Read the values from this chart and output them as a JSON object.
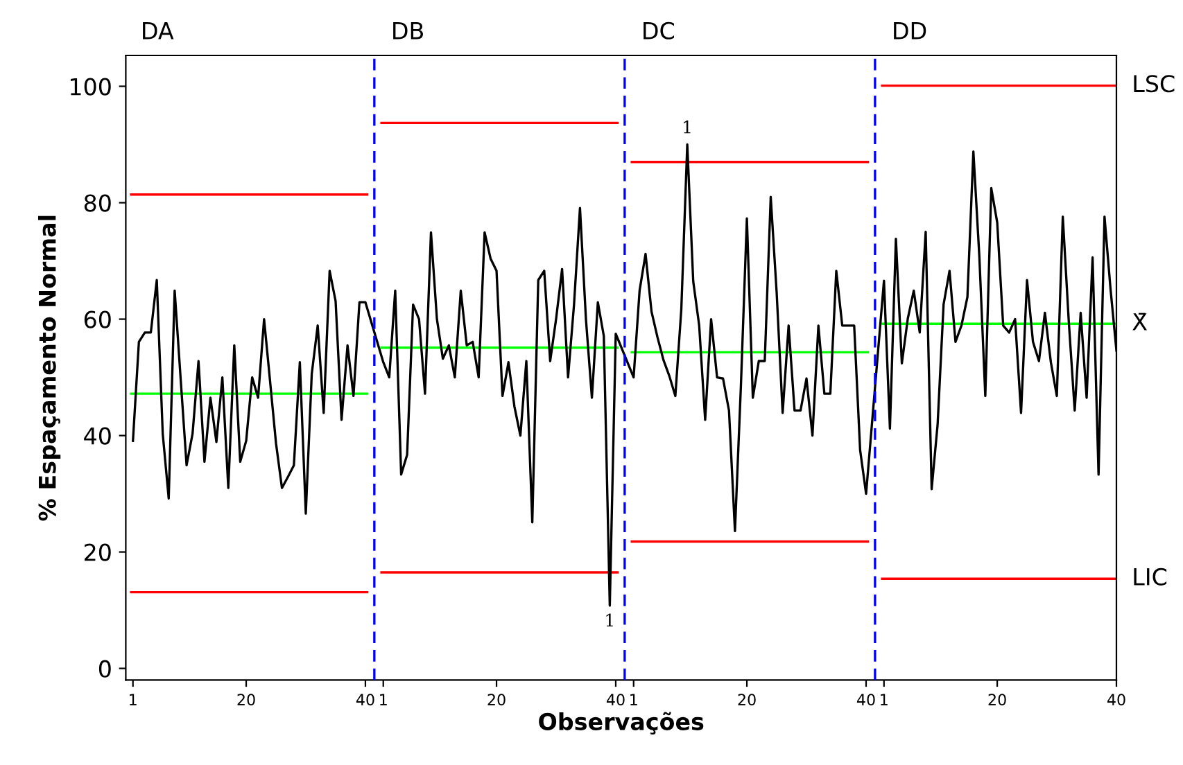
{
  "chart_data": {
    "type": "line",
    "xlabel": "Observações",
    "ylabel": "% Espaçamento Normal",
    "categories": [
      "1",
      null,
      null,
      null,
      null,
      null,
      null,
      null,
      null,
      null,
      null,
      null,
      null,
      null,
      null,
      null,
      null,
      null,
      null,
      "20",
      null,
      null,
      null,
      null,
      null,
      null,
      null,
      null,
      null,
      null,
      null,
      null,
      null,
      null,
      null,
      null,
      null,
      null,
      null,
      "40",
      null,
      null,
      "1",
      null,
      null,
      null,
      null,
      null,
      null,
      null,
      null,
      null,
      null,
      null,
      null,
      null,
      null,
      null,
      null,
      null,
      null,
      "20",
      null,
      null,
      null,
      null,
      null,
      null,
      null,
      null,
      null,
      null,
      null,
      null,
      null,
      null,
      null,
      null,
      null,
      null,
      null,
      "40",
      null,
      null,
      "1",
      null,
      null,
      null,
      null,
      null,
      null,
      null,
      null,
      null,
      null,
      null,
      null,
      null,
      null,
      null,
      null,
      null,
      null,
      "20",
      null,
      null,
      null,
      null,
      null,
      null,
      null,
      null,
      null,
      null,
      null,
      null,
      null,
      null,
      null,
      null,
      null,
      null,
      null,
      "40",
      null,
      null,
      "1",
      null,
      null,
      null,
      null,
      null,
      null,
      null,
      null,
      null,
      null,
      null,
      null,
      null,
      null,
      null,
      null,
      null,
      null,
      "20",
      null,
      null,
      null,
      null,
      null,
      null,
      null,
      null,
      null,
      null,
      null,
      null,
      null,
      null,
      null,
      null,
      null,
      null,
      null,
      "40"
    ],
    "series": [
      {
        "color": "#000000",
        "values": [
          39.1,
          56.1,
          57.7,
          57.7,
          66.7,
          40.3,
          29.2,
          64.9,
          49.8,
          34.9,
          40.3,
          52.8,
          35.5,
          46.5,
          38.9,
          50.0,
          31.0,
          55.5,
          35.5,
          39.1,
          50.0,
          46.5,
          60.0,
          49.4,
          38.7,
          31.0,
          32.9,
          34.9,
          52.6,
          26.6,
          50.6,
          58.9,
          43.9,
          68.3,
          63.1,
          42.7,
          55.5,
          46.8,
          62.9,
          62.9,
          null,
          null,
          52.6,
          50.0,
          64.9,
          33.3,
          36.7,
          62.5,
          60.0,
          47.2,
          74.9,
          60.0,
          53.2,
          55.5,
          50.0,
          64.9,
          55.5,
          56.1,
          50.0,
          74.9,
          70.4,
          68.3,
          46.8,
          52.6,
          45.0,
          40.0,
          52.8,
          25.1,
          66.7,
          68.3,
          52.8,
          60.1,
          68.6,
          50.0,
          62.5,
          79.1,
          60.0,
          46.5,
          62.9,
          57.1,
          10.8,
          57.5,
          null,
          null,
          50.0,
          64.9,
          71.2,
          61.3,
          56.9,
          53.0,
          50.2,
          46.8,
          61.7,
          90.0,
          66.5,
          58.9,
          42.7,
          60.0,
          50.0,
          49.8,
          44.3,
          23.6,
          48.6,
          77.3,
          46.5,
          52.8,
          52.8,
          81.0,
          64.5,
          43.9,
          58.9,
          44.3,
          44.3,
          49.8,
          40.0,
          58.9,
          47.2,
          47.2,
          68.3,
          58.9,
          58.9,
          58.9,
          37.5,
          30.0,
          null,
          null,
          66.6,
          41.2,
          73.8,
          52.4,
          60.1,
          64.9,
          57.7,
          75.0,
          30.8,
          41.9,
          62.5,
          68.3,
          56.1,
          58.9,
          63.8,
          88.8,
          70.8,
          46.8,
          82.5,
          76.6,
          58.9,
          57.7,
          60.0,
          43.9,
          66.7,
          56.1,
          52.8,
          61.1,
          52.6,
          46.8,
          77.6,
          59.7,
          44.3,
          61.1,
          46.5,
          70.6,
          33.3,
          77.6,
          65.3,
          54.6
        ]
      },
      {
        "type": "step",
        "name": "LSC",
        "color": "#ff0000",
        "values": [
          81.4,
          81.4,
          81.4,
          81.4,
          81.4,
          81.4,
          81.4,
          81.4,
          81.4,
          81.4,
          81.4,
          81.4,
          81.4,
          81.4,
          81.4,
          81.4,
          81.4,
          81.4,
          81.4,
          81.4,
          81.4,
          81.4,
          81.4,
          81.4,
          81.4,
          81.4,
          81.4,
          81.4,
          81.4,
          81.4,
          81.4,
          81.4,
          81.4,
          81.4,
          81.4,
          81.4,
          81.4,
          81.4,
          81.4,
          81.4,
          null,
          null,
          93.7,
          93.7,
          93.7,
          93.7,
          93.7,
          93.7,
          93.7,
          93.7,
          93.7,
          93.7,
          93.7,
          93.7,
          93.7,
          93.7,
          93.7,
          93.7,
          93.7,
          93.7,
          93.7,
          93.7,
          93.7,
          93.7,
          93.7,
          93.7,
          93.7,
          93.7,
          93.7,
          93.7,
          93.7,
          93.7,
          93.7,
          93.7,
          93.7,
          93.7,
          93.7,
          93.7,
          93.7,
          93.7,
          93.7,
          93.7,
          null,
          null,
          87.0,
          87.0,
          87.0,
          87.0,
          87.0,
          87.0,
          87.0,
          87.0,
          87.0,
          87.0,
          87.0,
          87.0,
          87.0,
          87.0,
          87.0,
          87.0,
          87.0,
          87.0,
          87.0,
          87.0,
          87.0,
          87.0,
          87.0,
          87.0,
          87.0,
          87.0,
          87.0,
          87.0,
          87.0,
          87.0,
          87.0,
          87.0,
          87.0,
          87.0,
          87.0,
          87.0,
          87.0,
          87.0,
          87.0,
          87.0,
          null,
          null,
          100.1,
          100.1,
          100.1,
          100.1,
          100.1,
          100.1,
          100.1,
          100.1,
          100.1,
          100.1,
          100.1,
          100.1,
          100.1,
          100.1,
          100.1,
          100.1,
          100.1,
          100.1,
          100.1,
          100.1,
          100.1,
          100.1,
          100.1,
          100.1,
          100.1,
          100.1,
          100.1,
          100.1,
          100.1,
          100.1,
          100.1,
          100.1,
          100.1,
          100.1,
          100.1,
          100.1,
          100.1,
          100.1,
          100.1,
          100.1
        ]
      },
      {
        "type": "step",
        "name": "X̄",
        "color": "#00ff00",
        "values": [
          47.2,
          47.2,
          47.2,
          47.2,
          47.2,
          47.2,
          47.2,
          47.2,
          47.2,
          47.2,
          47.2,
          47.2,
          47.2,
          47.2,
          47.2,
          47.2,
          47.2,
          47.2,
          47.2,
          47.2,
          47.2,
          47.2,
          47.2,
          47.2,
          47.2,
          47.2,
          47.2,
          47.2,
          47.2,
          47.2,
          47.2,
          47.2,
          47.2,
          47.2,
          47.2,
          47.2,
          47.2,
          47.2,
          47.2,
          47.2,
          null,
          null,
          55.1,
          55.1,
          55.1,
          55.1,
          55.1,
          55.1,
          55.1,
          55.1,
          55.1,
          55.1,
          55.1,
          55.1,
          55.1,
          55.1,
          55.1,
          55.1,
          55.1,
          55.1,
          55.1,
          55.1,
          55.1,
          55.1,
          55.1,
          55.1,
          55.1,
          55.1,
          55.1,
          55.1,
          55.1,
          55.1,
          55.1,
          55.1,
          55.1,
          55.1,
          55.1,
          55.1,
          55.1,
          55.1,
          55.1,
          55.1,
          null,
          null,
          54.3,
          54.3,
          54.3,
          54.3,
          54.3,
          54.3,
          54.3,
          54.3,
          54.3,
          54.3,
          54.3,
          54.3,
          54.3,
          54.3,
          54.3,
          54.3,
          54.3,
          54.3,
          54.3,
          54.3,
          54.3,
          54.3,
          54.3,
          54.3,
          54.3,
          54.3,
          54.3,
          54.3,
          54.3,
          54.3,
          54.3,
          54.3,
          54.3,
          54.3,
          54.3,
          54.3,
          54.3,
          54.3,
          54.3,
          54.3,
          null,
          null,
          59.2,
          59.2,
          59.2,
          59.2,
          59.2,
          59.2,
          59.2,
          59.2,
          59.2,
          59.2,
          59.2,
          59.2,
          59.2,
          59.2,
          59.2,
          59.2,
          59.2,
          59.2,
          59.2,
          59.2,
          59.2,
          59.2,
          59.2,
          59.2,
          59.2,
          59.2,
          59.2,
          59.2,
          59.2,
          59.2,
          59.2,
          59.2,
          59.2,
          59.2,
          59.2,
          59.2,
          59.2,
          59.2,
          59.2,
          59.2
        ]
      },
      {
        "type": "step",
        "name": "LIC",
        "color": "#ff0000",
        "values": [
          13.1,
          13.1,
          13.1,
          13.1,
          13.1,
          13.1,
          13.1,
          13.1,
          13.1,
          13.1,
          13.1,
          13.1,
          13.1,
          13.1,
          13.1,
          13.1,
          13.1,
          13.1,
          13.1,
          13.1,
          13.1,
          13.1,
          13.1,
          13.1,
          13.1,
          13.1,
          13.1,
          13.1,
          13.1,
          13.1,
          13.1,
          13.1,
          13.1,
          13.1,
          13.1,
          13.1,
          13.1,
          13.1,
          13.1,
          13.1,
          null,
          null,
          16.5,
          16.5,
          16.5,
          16.5,
          16.5,
          16.5,
          16.5,
          16.5,
          16.5,
          16.5,
          16.5,
          16.5,
          16.5,
          16.5,
          16.5,
          16.5,
          16.5,
          16.5,
          16.5,
          16.5,
          16.5,
          16.5,
          16.5,
          16.5,
          16.5,
          16.5,
          16.5,
          16.5,
          16.5,
          16.5,
          16.5,
          16.5,
          16.5,
          16.5,
          16.5,
          16.5,
          16.5,
          16.5,
          16.5,
          16.5,
          null,
          null,
          21.8,
          21.8,
          21.8,
          21.8,
          21.8,
          21.8,
          21.8,
          21.8,
          21.8,
          21.8,
          21.8,
          21.8,
          21.8,
          21.8,
          21.8,
          21.8,
          21.8,
          21.8,
          21.8,
          21.8,
          21.8,
          21.8,
          21.8,
          21.8,
          21.8,
          21.8,
          21.8,
          21.8,
          21.8,
          21.8,
          21.8,
          21.8,
          21.8,
          21.8,
          21.8,
          21.8,
          21.8,
          21.8,
          21.8,
          21.8,
          null,
          null,
          15.4,
          15.4,
          15.4,
          15.4,
          15.4,
          15.4,
          15.4,
          15.4,
          15.4,
          15.4,
          15.4,
          15.4,
          15.4,
          15.4,
          15.4,
          15.4,
          15.4,
          15.4,
          15.4,
          15.4,
          15.4,
          15.4,
          15.4,
          15.4,
          15.4,
          15.4,
          15.4,
          15.4,
          15.4,
          15.4,
          15.4,
          15.4,
          15.4,
          15.4,
          15.4,
          15.4,
          15.4,
          15.4,
          15.4,
          15.4
        ]
      }
    ],
    "annotations": [
      "DA",
      "DB",
      "DC",
      "DD",
      {
        "text": "1",
        "y": 10.8
      },
      {
        "text": "1",
        "y": 90.0
      }
    ],
    "ylim": [
      -2,
      105.3
    ],
    "yticks": [
      0,
      20,
      40,
      60,
      80,
      100
    ],
    "grid": false,
    "legend": false,
    "marker": "none",
    "line_style": "solid"
  }
}
